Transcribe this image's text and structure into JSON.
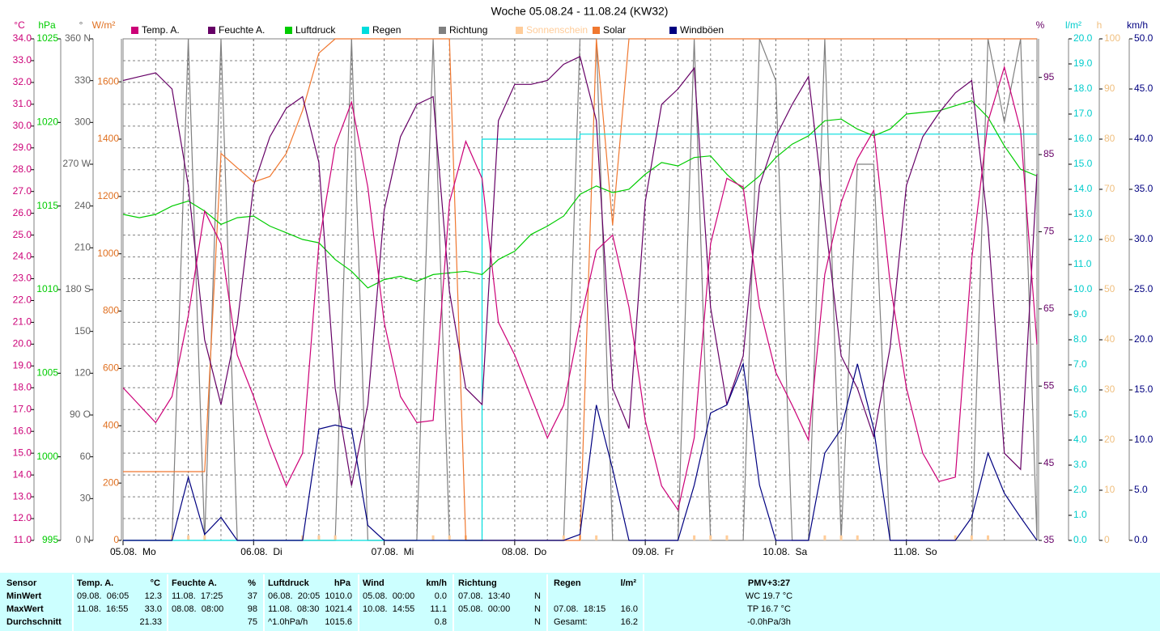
{
  "chart_data": {
    "type": "line",
    "title": "Woche 05.08.24 - 11.08.24 (KW32)",
    "xlim": [
      0,
      168
    ],
    "xticks": [
      {
        "value": 0,
        "label": "05.08.  Mo"
      },
      {
        "value": 24,
        "label": "06.08.  Di"
      },
      {
        "value": 48,
        "label": "07.08.  Mi"
      },
      {
        "value": 72,
        "label": "08.08.  Do"
      },
      {
        "value": 96,
        "label": "09.08.  Fr"
      },
      {
        "value": 120,
        "label": "10.08.  Sa"
      },
      {
        "value": 144,
        "label": "11.08.  So"
      }
    ],
    "grid": true,
    "axes": [
      {
        "unit": "°C",
        "color": "#cc0077",
        "side": "left",
        "ylim": [
          11,
          34
        ],
        "yticks": [
          {
            "value": 11,
            "label": "11.0"
          },
          {
            "value": 12,
            "label": "12.0"
          },
          {
            "value": 13,
            "label": "13.0"
          },
          {
            "value": 14,
            "label": "14.0"
          },
          {
            "value": 15,
            "label": "15.0"
          },
          {
            "value": 16,
            "label": "16.0"
          },
          {
            "value": 17,
            "label": "17.0"
          },
          {
            "value": 18,
            "label": "18.0"
          },
          {
            "value": 19,
            "label": "19.0"
          },
          {
            "value": 20,
            "label": "20.0"
          },
          {
            "value": 21,
            "label": "21.0"
          },
          {
            "value": 22,
            "label": "22.0"
          },
          {
            "value": 23,
            "label": "23.0"
          },
          {
            "value": 24,
            "label": "24.0"
          },
          {
            "value": 25,
            "label": "25.0"
          },
          {
            "value": 26,
            "label": "26.0"
          },
          {
            "value": 27,
            "label": "27.0"
          },
          {
            "value": 28,
            "label": "28.0"
          },
          {
            "value": 29,
            "label": "29.0"
          },
          {
            "value": 30,
            "label": "30.0"
          },
          {
            "value": 31,
            "label": "31.0"
          },
          {
            "value": 32,
            "label": "32.0"
          },
          {
            "value": 33,
            "label": "33.0"
          },
          {
            "value": 34,
            "label": "34.0"
          }
        ]
      },
      {
        "unit": "hPa",
        "color": "#00cc00",
        "side": "left",
        "ylim": [
          995,
          1025
        ],
        "yticks": [
          995,
          1000,
          1005,
          1010,
          1015,
          1020,
          1025
        ]
      },
      {
        "unit": "°",
        "color": "#606060",
        "side": "left",
        "ylim": [
          0,
          360
        ],
        "yticks": [
          {
            "value": 0,
            "label": "0 N"
          },
          30,
          60,
          {
            "value": 90,
            "label": "90 O"
          },
          120,
          150,
          {
            "value": 180,
            "label": "180 S"
          },
          210,
          240,
          {
            "value": 270,
            "label": "270 W"
          },
          300,
          330,
          {
            "value": 360,
            "label": "360 N"
          }
        ]
      },
      {
        "unit": "W/m²",
        "color": "#e07020",
        "side": "left",
        "ylim": [
          0,
          1750
        ],
        "yticks": [
          0,
          200,
          400,
          600,
          800,
          1000,
          1200,
          1400,
          1600
        ]
      },
      {
        "unit": "%",
        "color": "#660066",
        "side": "right",
        "ylim": [
          35,
          100
        ],
        "yticks": [
          35,
          45,
          55,
          65,
          75,
          85,
          95
        ]
      },
      {
        "unit": "l/m²",
        "color": "#00cccc",
        "side": "right",
        "ylim": [
          0,
          20
        ],
        "yticks": [
          {
            "value": 0,
            "label": "0.0"
          },
          {
            "value": 1,
            "label": "1.0"
          },
          {
            "value": 2,
            "label": "2.0"
          },
          {
            "value": 3,
            "label": "3.0"
          },
          {
            "value": 4,
            "label": "4.0"
          },
          {
            "value": 5,
            "label": "5.0"
          },
          {
            "value": 6,
            "label": "6.0"
          },
          {
            "value": 7,
            "label": "7.0"
          },
          {
            "value": 8,
            "label": "8.0"
          },
          {
            "value": 9,
            "label": "9.0"
          },
          {
            "value": 10,
            "label": "10.0"
          },
          {
            "value": 11,
            "label": "11.0"
          },
          {
            "value": 12,
            "label": "12.0"
          },
          {
            "value": 13,
            "label": "13.0"
          },
          {
            "value": 14,
            "label": "14.0"
          },
          {
            "value": 15,
            "label": "15.0"
          },
          {
            "value": 16,
            "label": "16.0"
          },
          {
            "value": 17,
            "label": "17.0"
          },
          {
            "value": 18,
            "label": "18.0"
          },
          {
            "value": 19,
            "label": "19.0"
          },
          {
            "value": 20,
            "label": "20.0"
          }
        ]
      },
      {
        "unit": "h",
        "color": "#f0c080",
        "side": "right",
        "ylim": [
          0,
          100
        ],
        "yticks": [
          0,
          10,
          20,
          30,
          40,
          50,
          60,
          70,
          80,
          90,
          100
        ]
      },
      {
        "unit": "km/h",
        "color": "#000080",
        "side": "right",
        "ylim": [
          0,
          50
        ],
        "yticks": [
          {
            "value": 0,
            "label": "0.0"
          },
          {
            "value": 5,
            "label": "5.0"
          },
          {
            "value": 10,
            "label": "10.0"
          },
          {
            "value": 15,
            "label": "15.0"
          },
          {
            "value": 20,
            "label": "20.0"
          },
          {
            "value": 25,
            "label": "25.0"
          },
          {
            "value": 30,
            "label": "30.0"
          },
          {
            "value": 35,
            "label": "35.0"
          },
          {
            "value": 40,
            "label": "40.0"
          },
          {
            "value": 45,
            "label": "45.0"
          },
          {
            "value": 50,
            "label": "50.0"
          }
        ]
      }
    ],
    "x": [
      0,
      3,
      6,
      9,
      12,
      15,
      18,
      21,
      24,
      27,
      30,
      33,
      36,
      39,
      42,
      45,
      48,
      51,
      54,
      57,
      60,
      63,
      66,
      69,
      72,
      75,
      78,
      81,
      84,
      87,
      90,
      93,
      96,
      99,
      102,
      105,
      108,
      111,
      114,
      117,
      120,
      123,
      126,
      129,
      132,
      135,
      138,
      141,
      144,
      147,
      150,
      153,
      156,
      159,
      162,
      165,
      168
    ],
    "series": [
      {
        "name": "Temp. A.",
        "color": "#cc0077",
        "axis": 0,
        "style": "line",
        "values": [
          18.0,
          17.2,
          16.4,
          17.6,
          21.3,
          26.1,
          24.6,
          19.5,
          17.6,
          15.4,
          13.5,
          15.0,
          24.6,
          29.1,
          31.1,
          27.2,
          21.0,
          17.6,
          16.4,
          16.5,
          26.5,
          29.3,
          27.6,
          21.0,
          19.5,
          17.6,
          15.7,
          17.2,
          21.0,
          24.3,
          25.0,
          21.7,
          16.5,
          13.5,
          12.4,
          15.7,
          24.6,
          27.6,
          27.2,
          21.7,
          18.7,
          17.2,
          15.6,
          23.2,
          26.5,
          28.5,
          29.8,
          22.8,
          18.0,
          15.0,
          13.7,
          13.9,
          23.9,
          30.2,
          32.7,
          29.8,
          20.0
        ]
      },
      {
        "name": "Feuchte A.",
        "color": "#660066",
        "axis": 4,
        "style": "line",
        "values": [
          94.6,
          95.1,
          95.6,
          93.5,
          81,
          61,
          52.6,
          63,
          81,
          87.3,
          91,
          92.5,
          84,
          54.7,
          42.1,
          52.6,
          77.8,
          87.3,
          91.5,
          92.5,
          67.3,
          54.7,
          52.6,
          89.4,
          94.1,
          94.1,
          94.6,
          96.7,
          97.7,
          89.4,
          54.7,
          49.5,
          78.9,
          91.5,
          93.5,
          96.2,
          65.2,
          52.6,
          58.9,
          81,
          87.3,
          91.5,
          95.1,
          76.8,
          58.9,
          54.7,
          48.4,
          60,
          81,
          87.3,
          90.4,
          93,
          94.6,
          75.7,
          46.3,
          44.2,
          82.5
        ]
      },
      {
        "name": "Luftdruck",
        "color": "#00cc00",
        "axis": 1,
        "style": "line",
        "values": [
          1014.5,
          1014.3,
          1014.5,
          1015.0,
          1015.3,
          1014.7,
          1013.9,
          1014.3,
          1014.4,
          1013.8,
          1013.4,
          1013.0,
          1012.8,
          1011.8,
          1011.1,
          1010.1,
          1010.6,
          1010.8,
          1010.5,
          1010.9,
          1011.0,
          1011.1,
          1010.9,
          1011.8,
          1012.3,
          1013.3,
          1013.8,
          1014.4,
          1015.7,
          1016.2,
          1015.8,
          1016.0,
          1016.9,
          1017.6,
          1017.4,
          1017.9,
          1018.0,
          1016.9,
          1016.0,
          1016.8,
          1017.9,
          1018.7,
          1019.2,
          1020.1,
          1020.2,
          1019.6,
          1019.2,
          1019.6,
          1020.5,
          1020.6,
          1020.7,
          1021.0,
          1021.3,
          1020.3,
          1018.6,
          1017.2,
          1016.8
        ]
      },
      {
        "name": "Regen",
        "color": "#00dddd",
        "axis": 5,
        "style": "step",
        "values": [
          0,
          0,
          0,
          0,
          0,
          0,
          0,
          0,
          0,
          0,
          0,
          0,
          0,
          0,
          0,
          0,
          0,
          0,
          0,
          0,
          0,
          0,
          16.0,
          16.0,
          16.0,
          16.0,
          16.0,
          16.0,
          16.2,
          16.2,
          16.2,
          16.2,
          16.2,
          16.2,
          16.2,
          16.2,
          16.2,
          16.2,
          16.2,
          16.2,
          16.2,
          16.2,
          16.2,
          16.2,
          16.2,
          16.2,
          16.2,
          16.2,
          16.2,
          16.2,
          16.2,
          16.2,
          16.2,
          16.2,
          16.2,
          16.2,
          16.2
        ]
      },
      {
        "name": "Richtung",
        "color": "#808080",
        "axis": 2,
        "style": "line",
        "values": [
          0,
          0,
          0,
          0,
          360,
          0,
          360,
          0,
          0,
          0,
          0,
          0,
          0,
          0,
          360,
          0,
          0,
          0,
          0,
          360,
          0,
          0,
          0,
          0,
          0,
          0,
          0,
          0,
          360,
          360,
          0,
          0,
          0,
          0,
          0,
          360,
          0,
          0,
          0,
          360,
          330,
          0,
          0,
          360,
          0,
          270,
          270,
          0,
          0,
          0,
          0,
          0,
          0,
          360,
          300,
          360,
          0
        ]
      },
      {
        "name": "Sonnenschein",
        "color": "#ffcc99",
        "axis": 6,
        "style": "bar",
        "values": [
          0,
          0,
          0,
          1,
          1,
          1,
          0,
          0,
          0,
          0,
          0,
          1,
          1,
          1,
          0,
          0,
          0,
          0,
          0,
          1,
          1,
          1,
          0,
          0,
          0,
          0,
          0,
          1,
          1,
          1,
          0,
          0,
          0,
          0,
          0,
          1,
          1,
          1,
          0,
          0,
          0,
          0,
          0,
          1,
          1,
          1,
          0,
          0,
          0,
          0,
          0,
          1,
          1,
          1,
          0,
          0,
          0
        ]
      },
      {
        "name": "Solar",
        "color": "#f07830",
        "axis": 3,
        "style": "line",
        "values": [
          240,
          240,
          240,
          240,
          240,
          240,
          1350,
          1300,
          1250,
          1270,
          1350,
          1500,
          1700,
          1750,
          1750,
          1750,
          1750,
          1750,
          1750,
          1750,
          1750,
          0,
          0,
          0,
          0,
          0,
          0,
          0,
          0,
          1750,
          1100,
          1750,
          1750,
          1750,
          1750,
          1750,
          1750,
          1750,
          1750,
          1750,
          1750,
          1750,
          1750,
          1750,
          1750,
          1750,
          1750,
          1750,
          1750,
          1750,
          1750,
          1750,
          1750,
          1750,
          1750,
          1750,
          1750
        ]
      },
      {
        "name": "Windböen",
        "color": "#000080",
        "axis": 7,
        "style": "line",
        "values": [
          0,
          0,
          0,
          0,
          6.3,
          0.6,
          2.3,
          0,
          0,
          0,
          0,
          0,
          11.1,
          11.5,
          11.1,
          1.5,
          0,
          0,
          0,
          0,
          0,
          0,
          0,
          0,
          0,
          0,
          0,
          0,
          0.6,
          13.5,
          7.1,
          0,
          0,
          0,
          0,
          5.5,
          12.7,
          13.5,
          17.6,
          5.5,
          0,
          0,
          0,
          8.7,
          11.1,
          17.6,
          11.1,
          0,
          0,
          0,
          0,
          0,
          2.3,
          8.7,
          4.7,
          2.3,
          0
        ]
      }
    ]
  },
  "table": {
    "columns": [
      {
        "name": "Sensor"
      },
      {
        "name": "Temp. A.",
        "unit": "°C"
      },
      {
        "name": "Feuchte A.",
        "unit": "%"
      },
      {
        "name": "Luftdruck",
        "unit": "hPa"
      },
      {
        "name": "Wind",
        "unit": "km/h"
      },
      {
        "name": "Richtung"
      },
      {
        "name": "Regen",
        "unit": "l/m²"
      },
      {
        "name": "PMV+3:27"
      }
    ],
    "rows": [
      {
        "label": "MinWert",
        "cells": [
          {
            "time": "09.08.  06:05",
            "value": "12.3"
          },
          {
            "time": "11.08.  17:25",
            "value": "37"
          },
          {
            "time": "06.08.  20:05",
            "value": "1010.0"
          },
          {
            "time": "05.08.  00:00",
            "value": "0.0"
          },
          {
            "time": "07.08.  13:40",
            "value": "N"
          },
          null,
          {
            "value": "WC 19.7 °C"
          }
        ]
      },
      {
        "label": "MaxWert",
        "cells": [
          {
            "time": "11.08.  16:55",
            "value": "33.0"
          },
          {
            "time": "08.08.  08:00",
            "value": "98"
          },
          {
            "time": "11.08.  08:30",
            "value": "1021.4"
          },
          {
            "time": "10.08.  14:55",
            "value": "11.1"
          },
          {
            "time": "05.08.  00:00",
            "value": "N"
          },
          {
            "time": "07.08.  18:15",
            "value": "16.0"
          },
          {
            "value": "TP 16.7 °C"
          }
        ]
      },
      {
        "label": "Durchschnitt",
        "cells": [
          {
            "value": "21.33"
          },
          {
            "value": "75"
          },
          {
            "time": "^1.0hPa/h",
            "value": "1015.6"
          },
          {
            "value": "0.8"
          },
          {
            "value": "N"
          },
          {
            "time": "Gesamt:",
            "value": "16.2"
          },
          {
            "value": "-0.0hPa/3h"
          }
        ]
      }
    ]
  }
}
